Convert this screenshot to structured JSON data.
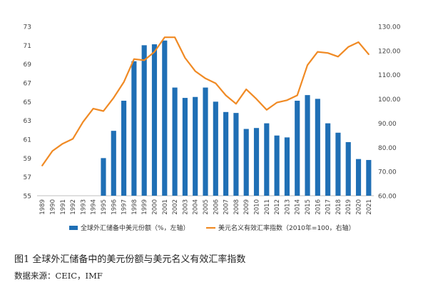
{
  "chart_data": {
    "type": "bar",
    "categories": [
      "1989",
      "1990",
      "1991",
      "1992",
      "1993",
      "1994",
      "1995",
      "1996",
      "1997",
      "1998",
      "1999",
      "2000",
      "2001",
      "2002",
      "2003",
      "2004",
      "2005",
      "2006",
      "2007",
      "2008",
      "2009",
      "2010",
      "2011",
      "2012",
      "2013",
      "2014",
      "2015",
      "2016",
      "2017",
      "2018",
      "2019",
      "2020",
      "2021"
    ],
    "series": [
      {
        "name": "全球外汇储备中美元份额（%，左轴）",
        "type": "bar",
        "axis": "left",
        "color": "#1f6fb5",
        "values": [
          null,
          null,
          null,
          null,
          null,
          null,
          59.0,
          61.9,
          65.1,
          69.3,
          71.0,
          71.1,
          71.5,
          66.5,
          65.4,
          65.5,
          66.5,
          65.0,
          63.9,
          63.8,
          62.1,
          62.2,
          62.7,
          61.4,
          61.2,
          65.1,
          65.7,
          65.3,
          62.7,
          61.7,
          60.7,
          58.9,
          58.8
        ]
      },
      {
        "name": "美元名义有效汇率指数（2010年=100，右轴）",
        "type": "line",
        "axis": "right",
        "color": "#f08a24",
        "values": [
          72.5,
          78.5,
          81.5,
          83.5,
          90.5,
          96.0,
          95.0,
          100.5,
          107.0,
          116.5,
          116.0,
          119.5,
          125.5,
          125.5,
          117.0,
          111.5,
          108.5,
          106.5,
          101.5,
          98.0,
          104.0,
          100.0,
          95.5,
          98.5,
          99.5,
          101.5,
          114.0,
          119.5,
          119.0,
          117.5,
          121.5,
          123.5,
          118.5
        ]
      }
    ],
    "ylim_left": [
      55,
      73
    ],
    "ylim_right": [
      60,
      130
    ],
    "yticks_left": [
      "55",
      "57",
      "59",
      "61",
      "63",
      "65",
      "67",
      "69",
      "71",
      "73"
    ],
    "yticks_right": [
      "60.00",
      "70.00",
      "80.00",
      "90.00",
      "100.00",
      "110.00",
      "120.00",
      "130.00"
    ],
    "grid": false,
    "legend_position": "bottom"
  },
  "caption": "图1 全球外汇储备中的美元份额与美元名义有效汇率指数",
  "source": {
    "label": "数据来源：",
    "text": "CEIC，IMF"
  }
}
